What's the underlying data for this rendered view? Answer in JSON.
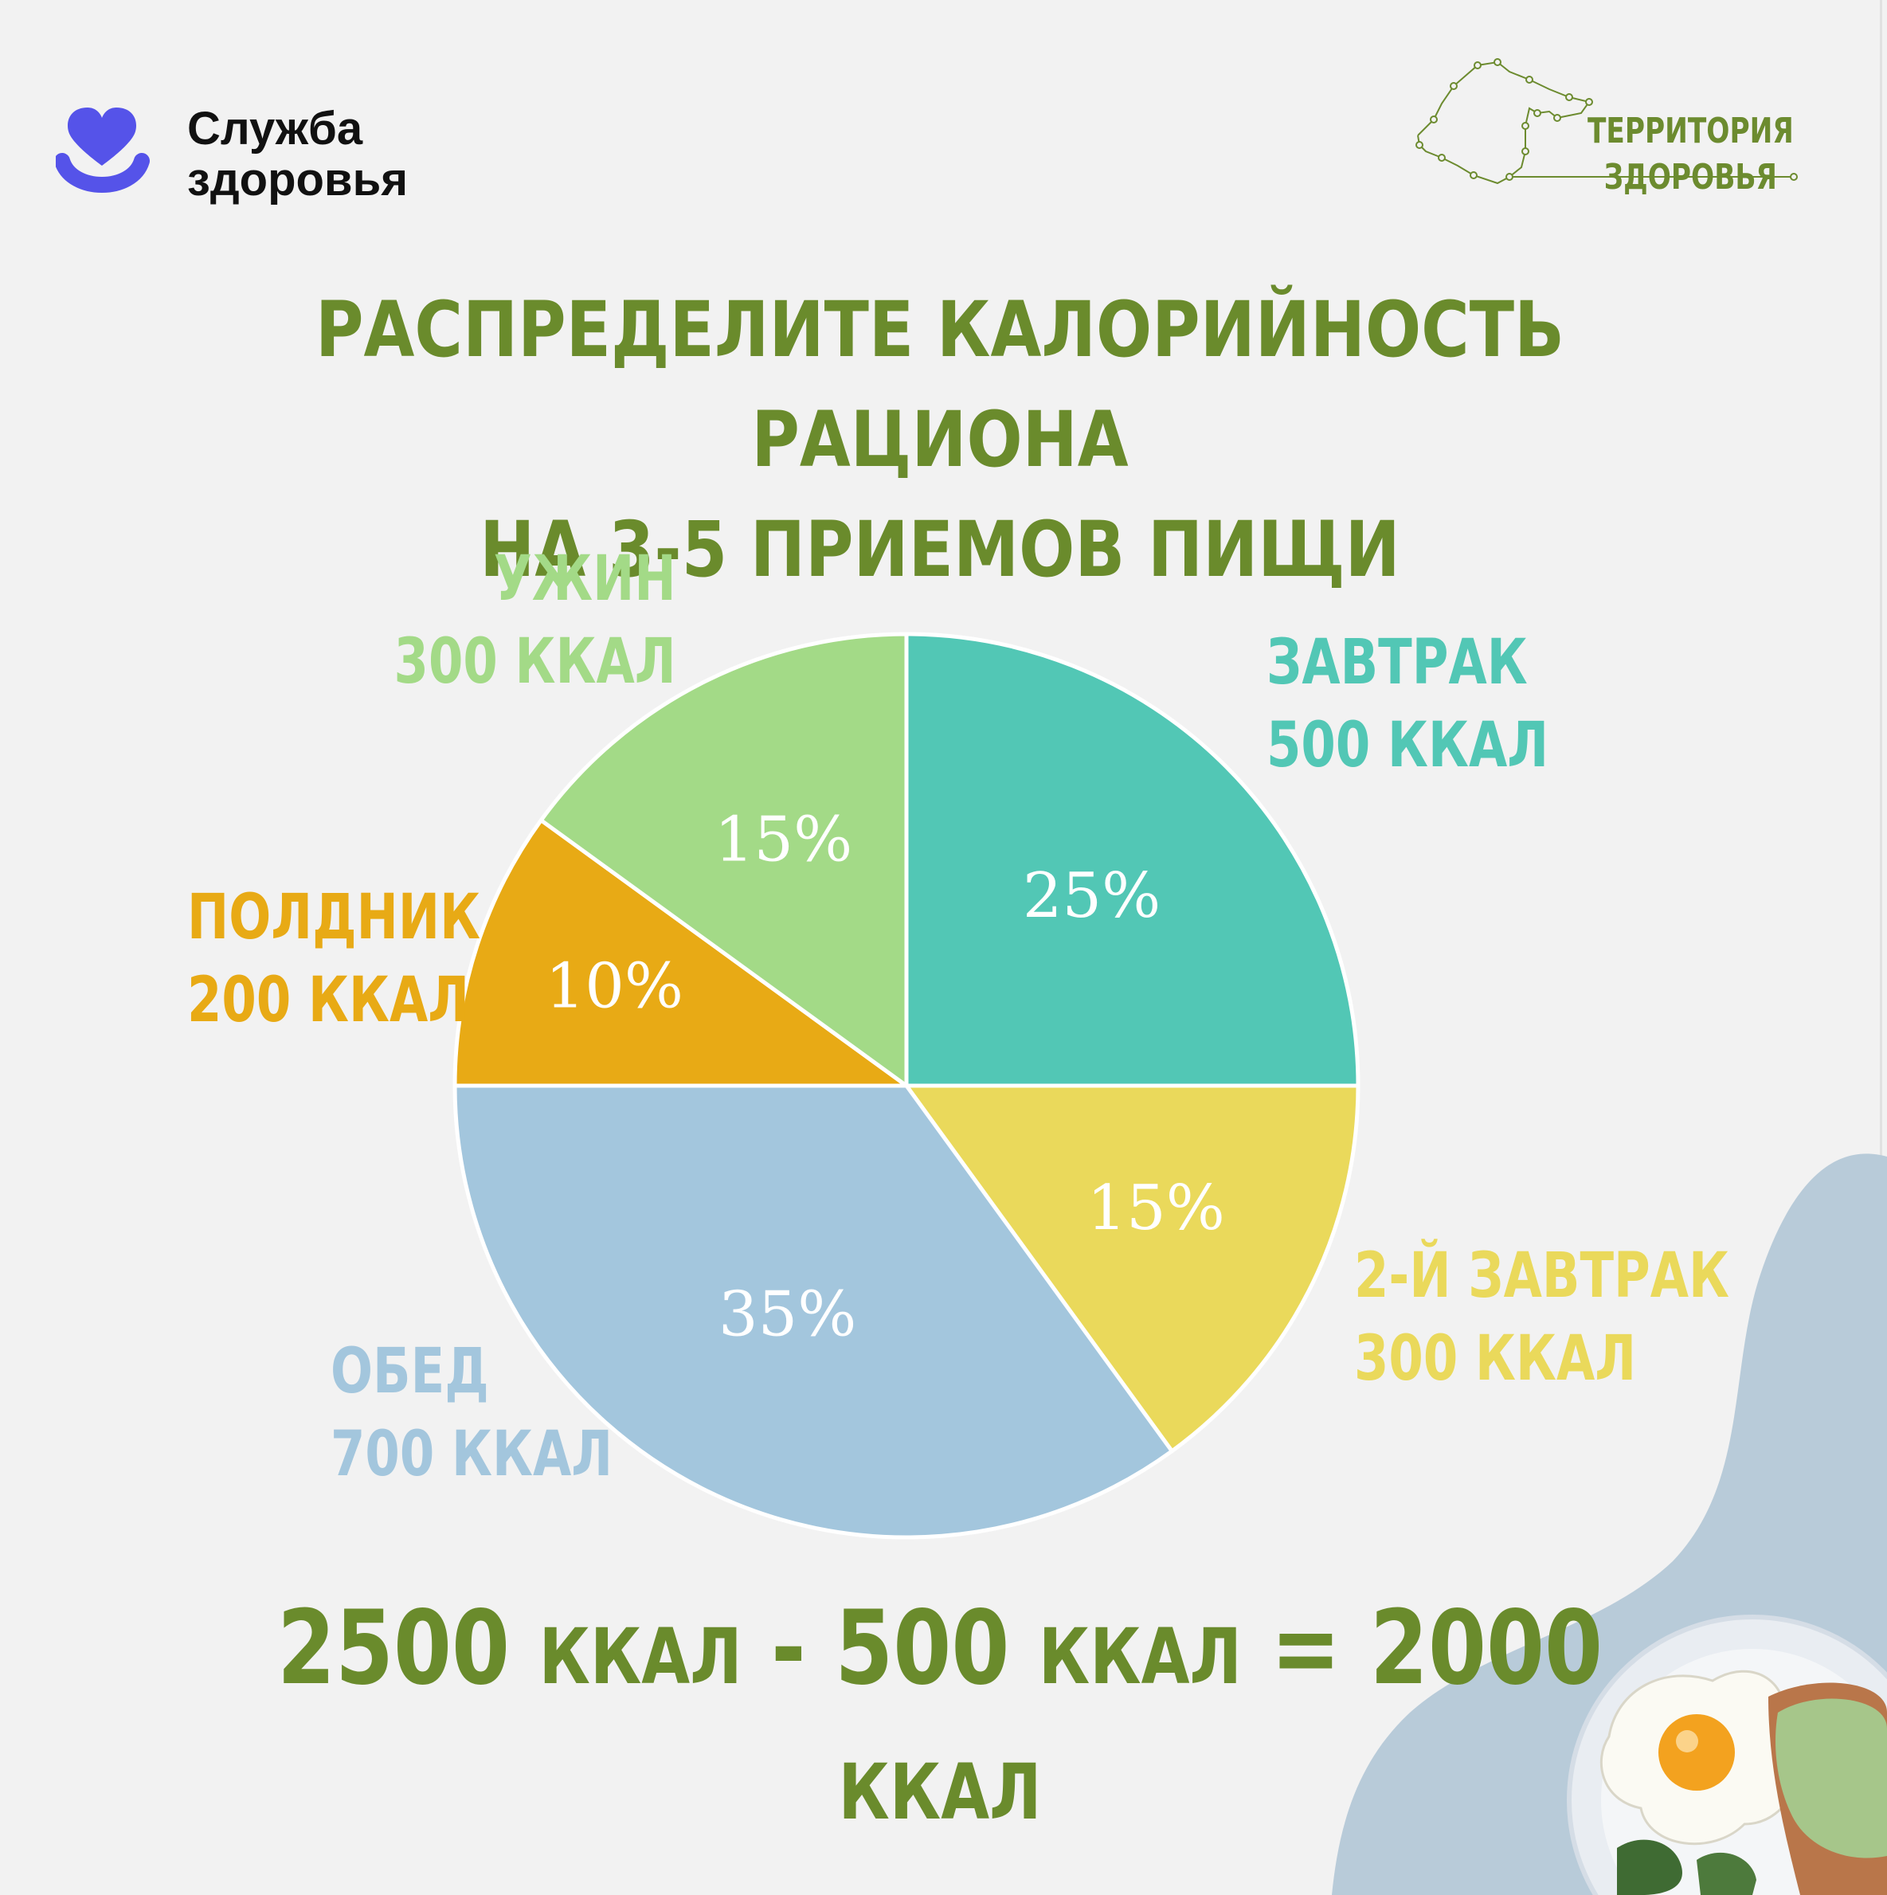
{
  "brand_left": {
    "line1": "Служба",
    "line2": "здоровья",
    "icon": "heart-smile-icon"
  },
  "brand_right": {
    "line1": "ТЕРРИТОРИЯ",
    "line2": "ЗДОРОВЬЯ",
    "icon": "region-map-icon"
  },
  "heading": {
    "line1": "РАСПРЕДЕЛИТЕ КАЛОРИЙНОСТЬ РАЦИОНА",
    "line2": "НА 3-5 ПРИЕМОВ ПИЩИ"
  },
  "chart_data": {
    "type": "pie",
    "title": "",
    "slices": [
      {
        "name": "ЗАВТРАК",
        "kcal_label": "500 ККАЛ",
        "percent": 25,
        "percent_label": "25%",
        "color": "#52c7b5"
      },
      {
        "name": "2-Й ЗАВТРАК",
        "kcal_label": "300 ККАЛ",
        "percent": 15,
        "percent_label": "15%",
        "color": "#ead95b"
      },
      {
        "name": "ОБЕД",
        "kcal_label": "700 ККАЛ",
        "percent": 35,
        "percent_label": "35%",
        "color": "#a3c6dd"
      },
      {
        "name": "ПОЛДНИК",
        "kcal_label": "200 ККАЛ",
        "percent": 10,
        "percent_label": "10%",
        "color": "#e8aa15"
      },
      {
        "name": "УЖИН",
        "kcal_label": "300 ККАЛ",
        "percent": 15,
        "percent_label": "15%",
        "color": "#a3da87"
      }
    ],
    "start": "12 o'clock",
    "direction": "clockwise"
  },
  "equation": {
    "a": "2500",
    "unit": "ККАЛ",
    "op1": "-",
    "b": "500",
    "op2": "=",
    "c": "2000"
  },
  "colors": {
    "heading_green": "#6a8b2c",
    "background": "#f2f2f2",
    "blob_blue": "#b8cbd9",
    "brand_purple": "#5553e9"
  }
}
